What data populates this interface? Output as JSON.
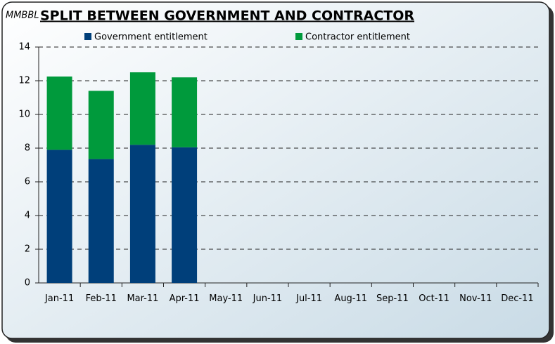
{
  "chart_data": {
    "type": "bar",
    "stacked": true,
    "title": "SPLIT BETWEEN GOVERNMENT AND CONTRACTOR",
    "y_label": "MMBBL",
    "categories": [
      "Jan-11",
      "Feb-11",
      "Mar-11",
      "Apr-11",
      "May-11",
      "Jun-11",
      "Jul-11",
      "Aug-11",
      "Sep-11",
      "Oct-11",
      "Nov-11",
      "Dec-11"
    ],
    "series": [
      {
        "name": "Government entitlement",
        "color": "#003f7a",
        "values": [
          7.9,
          7.35,
          8.2,
          8.05,
          null,
          null,
          null,
          null,
          null,
          null,
          null,
          null
        ]
      },
      {
        "name": "Contractor entitlement",
        "color": "#009a3c",
        "values": [
          4.35,
          4.05,
          4.3,
          4.15,
          null,
          null,
          null,
          null,
          null,
          null,
          null,
          null
        ]
      }
    ],
    "ylim": [
      0,
      14
    ],
    "yticks": [
      0,
      2,
      4,
      6,
      8,
      10,
      12,
      14
    ],
    "grid": true
  }
}
